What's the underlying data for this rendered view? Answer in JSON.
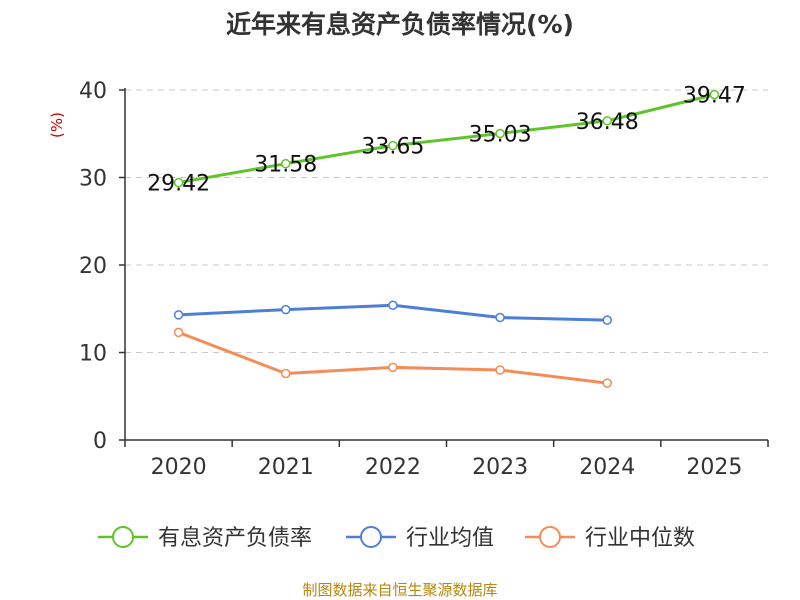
{
  "chart_data": {
    "type": "line",
    "title": "近年来有息资产负债率情况(%)",
    "ylabel": "(%)",
    "xlabel": "",
    "categories": [
      "2020",
      "2021",
      "2022",
      "2023",
      "2024",
      "2025"
    ],
    "ylim": [
      0,
      40
    ],
    "yticks": [
      0,
      10,
      20,
      30,
      40
    ],
    "grid": true,
    "legend_position": "bottom",
    "series": [
      {
        "name": "有息资产负债率",
        "color": "#5ec429",
        "show_labels": true,
        "values": [
          29.42,
          31.58,
          33.65,
          35.03,
          36.48,
          39.47
        ]
      },
      {
        "name": "行业均值",
        "color": "#4e7fd8",
        "show_labels": false,
        "values": [
          14.3,
          14.9,
          15.4,
          14.0,
          13.7,
          null
        ]
      },
      {
        "name": "行业中位数",
        "color": "#f58c57",
        "show_labels": false,
        "values": [
          12.3,
          7.6,
          8.3,
          8.0,
          6.5,
          null
        ]
      }
    ],
    "source": "制图数据来自恒生聚源数据库"
  }
}
